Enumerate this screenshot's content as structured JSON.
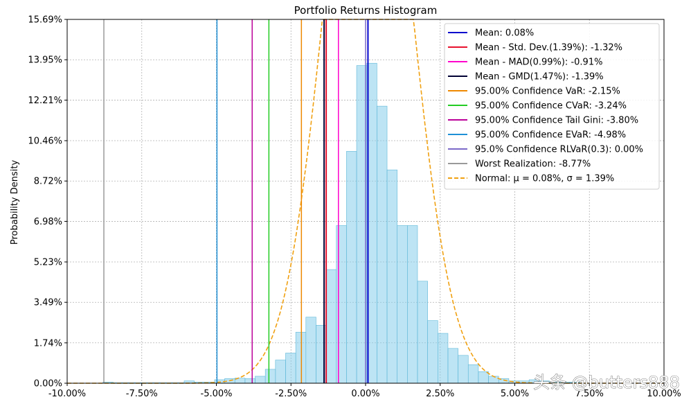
{
  "chart_data": {
    "type": "histogram",
    "title": "Portfolio Returns Histogram",
    "xlabel": "",
    "ylabel": "Probability Density",
    "xlim": [
      -0.1,
      0.1
    ],
    "ylim": [
      0,
      0.1569
    ],
    "x_ticks": [
      -0.1,
      -0.075,
      -0.05,
      -0.025,
      0.0,
      0.025,
      0.05,
      0.075,
      0.1
    ],
    "x_tick_labels": [
      "-10.00%",
      "-7.50%",
      "-5.00%",
      "-2.50%",
      "0.00%",
      "2.50%",
      "5.00%",
      "7.50%",
      "10.00%"
    ],
    "y_ticks": [
      0,
      0.0174,
      0.0349,
      0.0523,
      0.0698,
      0.0872,
      0.1046,
      0.1221,
      0.1395,
      0.1569
    ],
    "y_tick_labels": [
      "0.00%",
      "1.74%",
      "3.49%",
      "5.23%",
      "6.98%",
      "8.72%",
      "10.46%",
      "12.21%",
      "13.95%",
      "15.69%"
    ],
    "grid": true,
    "legend_position": "top-right",
    "histogram": {
      "color": "#87ceeb",
      "edge_color": "#5fb8d8",
      "bins": [
        {
          "x0": -0.088,
          "x1": -0.0846,
          "density": 0.0005
        },
        {
          "x0": -0.0846,
          "x1": -0.0812,
          "density": 0.0002
        },
        {
          "x0": -0.0812,
          "x1": -0.0778,
          "density": 0.0002
        },
        {
          "x0": -0.0778,
          "x1": -0.0744,
          "density": 0.0002
        },
        {
          "x0": -0.0744,
          "x1": -0.071,
          "density": 0.0002
        },
        {
          "x0": -0.071,
          "x1": -0.0676,
          "density": 0.0002
        },
        {
          "x0": -0.0676,
          "x1": -0.0642,
          "density": 0.0002
        },
        {
          "x0": -0.0642,
          "x1": -0.0608,
          "density": 0.0002
        },
        {
          "x0": -0.0608,
          "x1": -0.0574,
          "density": 0.001
        },
        {
          "x0": -0.0574,
          "x1": -0.054,
          "density": 0.0005
        },
        {
          "x0": -0.054,
          "x1": -0.0506,
          "density": 0.0005
        },
        {
          "x0": -0.0506,
          "x1": -0.0472,
          "density": 0.0015
        },
        {
          "x0": -0.0472,
          "x1": -0.0438,
          "density": 0.002
        },
        {
          "x0": -0.0438,
          "x1": -0.0404,
          "density": 0.0022
        },
        {
          "x0": -0.0404,
          "x1": -0.037,
          "density": 0.002
        },
        {
          "x0": -0.037,
          "x1": -0.0336,
          "density": 0.003
        },
        {
          "x0": -0.0336,
          "x1": -0.0302,
          "density": 0.006
        },
        {
          "x0": -0.0302,
          "x1": -0.0268,
          "density": 0.01
        },
        {
          "x0": -0.0268,
          "x1": -0.0234,
          "density": 0.013
        },
        {
          "x0": -0.0234,
          "x1": -0.02,
          "density": 0.022
        },
        {
          "x0": -0.02,
          "x1": -0.0166,
          "density": 0.0285
        },
        {
          "x0": -0.0166,
          "x1": -0.0132,
          "density": 0.025
        },
        {
          "x0": -0.0132,
          "x1": -0.0098,
          "density": 0.049
        },
        {
          "x0": -0.0098,
          "x1": -0.0064,
          "density": 0.068
        },
        {
          "x0": -0.0064,
          "x1": -0.003,
          "density": 0.1
        },
        {
          "x0": -0.003,
          "x1": 0.0004,
          "density": 0.137
        },
        {
          "x0": 0.0004,
          "x1": 0.0038,
          "density": 0.138
        },
        {
          "x0": 0.0038,
          "x1": 0.0072,
          "density": 0.1195
        },
        {
          "x0": 0.0072,
          "x1": 0.0106,
          "density": 0.092
        },
        {
          "x0": 0.0106,
          "x1": 0.014,
          "density": 0.068
        },
        {
          "x0": 0.014,
          "x1": 0.0174,
          "density": 0.068
        },
        {
          "x0": 0.0174,
          "x1": 0.0208,
          "density": 0.044
        },
        {
          "x0": 0.0208,
          "x1": 0.0242,
          "density": 0.027
        },
        {
          "x0": 0.0242,
          "x1": 0.0276,
          "density": 0.0215
        },
        {
          "x0": 0.0276,
          "x1": 0.031,
          "density": 0.015
        },
        {
          "x0": 0.031,
          "x1": 0.0344,
          "density": 0.012
        },
        {
          "x0": 0.0344,
          "x1": 0.0378,
          "density": 0.008
        },
        {
          "x0": 0.0378,
          "x1": 0.0412,
          "density": 0.005
        },
        {
          "x0": 0.0412,
          "x1": 0.0446,
          "density": 0.003
        },
        {
          "x0": 0.0446,
          "x1": 0.048,
          "density": 0.002
        },
        {
          "x0": 0.048,
          "x1": 0.0514,
          "density": 0.001
        },
        {
          "x0": 0.0514,
          "x1": 0.0548,
          "density": 0.001
        },
        {
          "x0": 0.0548,
          "x1": 0.0582,
          "density": 0.0015
        },
        {
          "x0": 0.0582,
          "x1": 0.0616,
          "density": 0.001
        },
        {
          "x0": 0.0616,
          "x1": 0.065,
          "density": 0.0005
        },
        {
          "x0": 0.065,
          "x1": 0.0684,
          "density": 0.0005
        },
        {
          "x0": 0.0684,
          "x1": 0.0718,
          "density": 0.0005
        }
      ]
    },
    "vertical_lines": [
      {
        "label": "Mean: 0.08%",
        "x": 0.0008,
        "color": "#0000cd",
        "width": 2
      },
      {
        "label": "Mean - Std. Dev.(1.39%): -1.32%",
        "x": -0.0132,
        "color": "#e8112d",
        "width": 2
      },
      {
        "label": "Mean - MAD(0.99%): -0.91%",
        "x": -0.0091,
        "color": "#ff00cc",
        "width": 1.5
      },
      {
        "label": "Mean - GMD(1.47%): -1.39%",
        "x": -0.0139,
        "color": "#000033",
        "width": 2
      },
      {
        "label": "95.00% Confidence VaR: -2.15%",
        "x": -0.0215,
        "color": "#ee8800",
        "width": 1.5
      },
      {
        "label": "95.00% Confidence CVaR: -3.24%",
        "x": -0.0324,
        "color": "#22cc22",
        "width": 1.5
      },
      {
        "label": "95.00% Confidence Tail Gini: -3.80%",
        "x": -0.038,
        "color": "#bb0099",
        "width": 1.5
      },
      {
        "label": "95.00% Confidence EVaR: -4.98%",
        "x": -0.0498,
        "color": "#1e90d6",
        "width": 1.5
      },
      {
        "label": "95.0% Confidence RLVaR(0.3): 0.00%",
        "x": 0.0,
        "color": "#7b68c8",
        "width": 1.5
      },
      {
        "label": "Worst Realization: -8.77%",
        "x": -0.0877,
        "color": "#999999",
        "width": 1.5
      }
    ],
    "normal_curve": {
      "label": "Normal: μ = 0.08%, σ = 1.39%",
      "mu": 0.0008,
      "sigma": 0.0139,
      "color": "#f0a010"
    },
    "legend": [
      {
        "text": "Mean: 0.08%",
        "color": "#0000cd",
        "style": "solid"
      },
      {
        "text": "Mean - Std. Dev.(1.39%): -1.32%",
        "color": "#e8112d",
        "style": "solid"
      },
      {
        "text": "Mean - MAD(0.99%): -0.91%",
        "color": "#ff00cc",
        "style": "solid"
      },
      {
        "text": "Mean - GMD(1.47%): -1.39%",
        "color": "#000033",
        "style": "solid"
      },
      {
        "text": "95.00% Confidence VaR: -2.15%",
        "color": "#ee8800",
        "style": "solid"
      },
      {
        "text": "95.00% Confidence CVaR: -3.24%",
        "color": "#22cc22",
        "style": "solid"
      },
      {
        "text": "95.00% Confidence Tail Gini: -3.80%",
        "color": "#bb0099",
        "style": "solid"
      },
      {
        "text": "95.00% Confidence EVaR: -4.98%",
        "color": "#1e90d6",
        "style": "solid"
      },
      {
        "text": "95.0% Confidence RLVaR(0.3): 0.00%",
        "color": "#7b68c8",
        "style": "solid"
      },
      {
        "text": "Worst Realization: -8.77%",
        "color": "#999999",
        "style": "solid"
      },
      {
        "text": "Normal: μ = 0.08%, σ = 1.39%",
        "color": "#f0a010",
        "style": "dashed",
        "math": true
      }
    ]
  },
  "watermark": "头条 @butters888"
}
